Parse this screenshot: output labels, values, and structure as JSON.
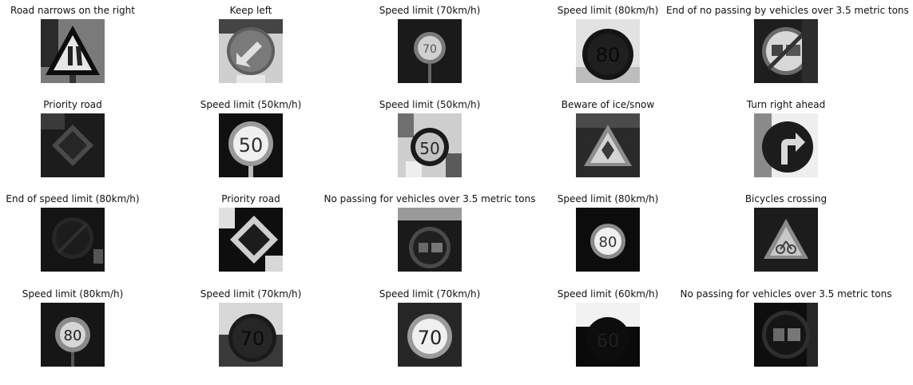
{
  "thumbnails": [
    {
      "title": "Road narrows on the right",
      "icon": "road-narrows-right-sign"
    },
    {
      "title": "Keep left",
      "icon": "keep-left-sign"
    },
    {
      "title": "Speed limit (70km/h)",
      "icon": "speed-limit-sign",
      "number": "70"
    },
    {
      "title": "Speed limit (80km/h)",
      "icon": "speed-limit-sign",
      "number": "80"
    },
    {
      "title": "End of no passing by vehicles over 3.5 metric tons",
      "icon": "end-no-passing-trucks-sign"
    },
    {
      "title": "Priority road",
      "icon": "priority-road-sign"
    },
    {
      "title": "Speed limit (50km/h)",
      "icon": "speed-limit-sign",
      "number": "50"
    },
    {
      "title": "Speed limit (50km/h)",
      "icon": "speed-limit-sign",
      "number": "50"
    },
    {
      "title": "Beware of ice/snow",
      "icon": "ice-snow-warning-sign"
    },
    {
      "title": "Turn right ahead",
      "icon": "turn-right-ahead-sign"
    },
    {
      "title": "End of speed limit (80km/h)",
      "icon": "end-speed-limit-sign"
    },
    {
      "title": "Priority road",
      "icon": "priority-road-sign"
    },
    {
      "title": "No passing for vehicles over 3.5 metric tons",
      "icon": "no-passing-trucks-sign"
    },
    {
      "title": "Speed limit (80km/h)",
      "icon": "speed-limit-sign",
      "number": "80"
    },
    {
      "title": "Bicycles crossing",
      "icon": "bicycle-crossing-sign"
    },
    {
      "title": "Speed limit (80km/h)",
      "icon": "speed-limit-sign",
      "number": "80"
    },
    {
      "title": "Speed limit (70km/h)",
      "icon": "speed-limit-sign",
      "number": "70"
    },
    {
      "title": "Speed limit (70km/h)",
      "icon": "speed-limit-sign",
      "number": "70"
    },
    {
      "title": "Speed limit (60km/h)",
      "icon": "speed-limit-sign",
      "number": "60"
    },
    {
      "title": "No passing for vehicles over 3.5 metric tons",
      "icon": "no-passing-trucks-sign"
    }
  ]
}
